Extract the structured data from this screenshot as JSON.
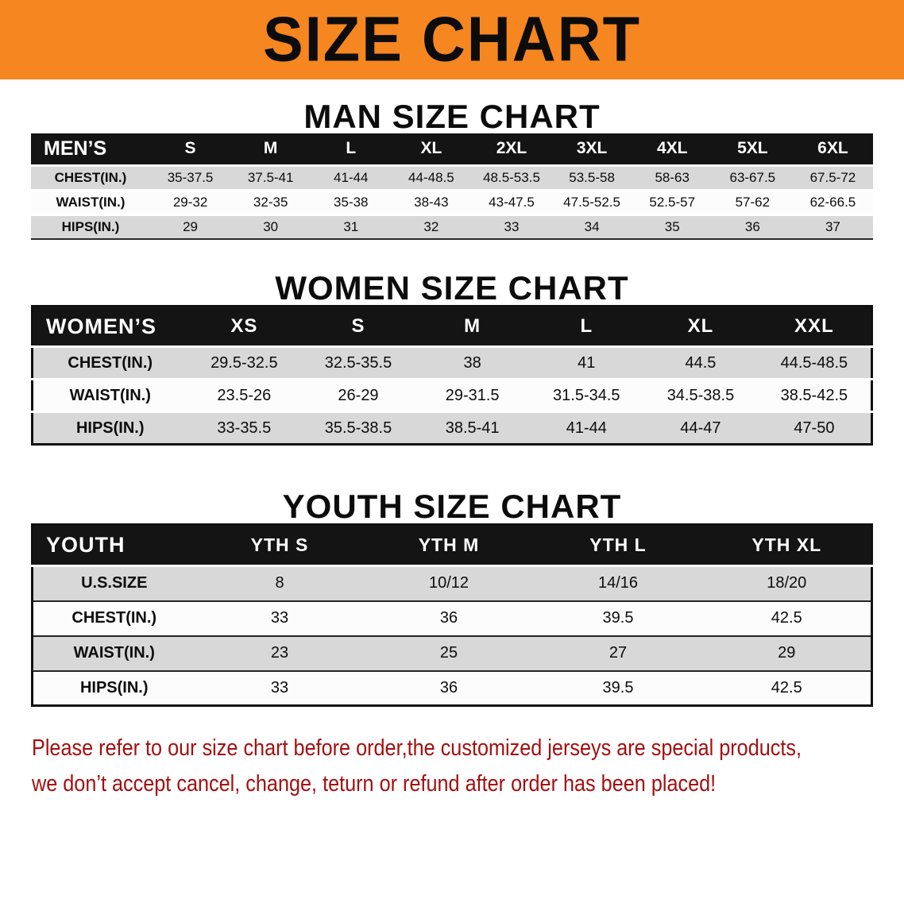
{
  "banner": {
    "title": "SIZE CHART"
  },
  "colors": {
    "banner-bg": "#F6861F",
    "bar-bg": "#141414",
    "row-gray": "#D8D8D8",
    "row-white": "#FCFCFC",
    "note-red": "#A40F0F"
  },
  "sections": {
    "men": {
      "heading": "MAN SIZE CHART",
      "table": {
        "header": [
          "MEN’S",
          "S",
          "M",
          "L",
          "XL",
          "2XL",
          "3XL",
          "4XL",
          "5XL",
          "6XL"
        ],
        "rows": [
          [
            "CHEST(IN.)",
            "35-37.5",
            "37.5-41",
            "41-44",
            "44-48.5",
            "48.5-53.5",
            "53.5-58",
            "58-63",
            "63-67.5",
            "67.5-72"
          ],
          [
            "WAIST(IN.)",
            "29-32",
            "32-35",
            "35-38",
            "38-43",
            "43-47.5",
            "47.5-52.5",
            "52.5-57",
            "57-62",
            "62-66.5"
          ],
          [
            "HIPS(IN.)",
            "29",
            "30",
            "31",
            "32",
            "33",
            "34",
            "35",
            "36",
            "37"
          ]
        ]
      }
    },
    "women": {
      "heading": "WOMEN SIZE CHART",
      "table": {
        "header": [
          "WOMEN’S",
          "XS",
          "S",
          "M",
          "L",
          "XL",
          "XXL"
        ],
        "rows": [
          [
            "CHEST(IN.)",
            "29.5-32.5",
            "32.5-35.5",
            "38",
            "41",
            "44.5",
            "44.5-48.5"
          ],
          [
            "WAIST(IN.)",
            "23.5-26",
            "26-29",
            "29-31.5",
            "31.5-34.5",
            "34.5-38.5",
            "38.5-42.5"
          ],
          [
            "HIPS(IN.)",
            "33-35.5",
            "35.5-38.5",
            "38.5-41",
            "41-44",
            "44-47",
            "47-50"
          ]
        ]
      }
    },
    "youth": {
      "heading": "YOUTH SIZE CHART",
      "table": {
        "header": [
          "YOUTH",
          "YTH S",
          "YTH M",
          "YTH L",
          "YTH XL"
        ],
        "rows": [
          [
            "U.S.SIZE",
            "8",
            "10/12",
            "14/16",
            "18/20"
          ],
          [
            "CHEST(IN.)",
            "33",
            "36",
            "39.5",
            "42.5"
          ],
          [
            "WAIST(IN.)",
            "23",
            "25",
            "27",
            "29"
          ],
          [
            "HIPS(IN.)",
            "33",
            "36",
            "39.5",
            "42.5"
          ]
        ]
      }
    }
  },
  "footer": {
    "line1": "Please refer to our size chart before order,the customized jerseys are special products,",
    "line2": "we don’t accept cancel, change, teturn or refund after order has been placed!"
  }
}
